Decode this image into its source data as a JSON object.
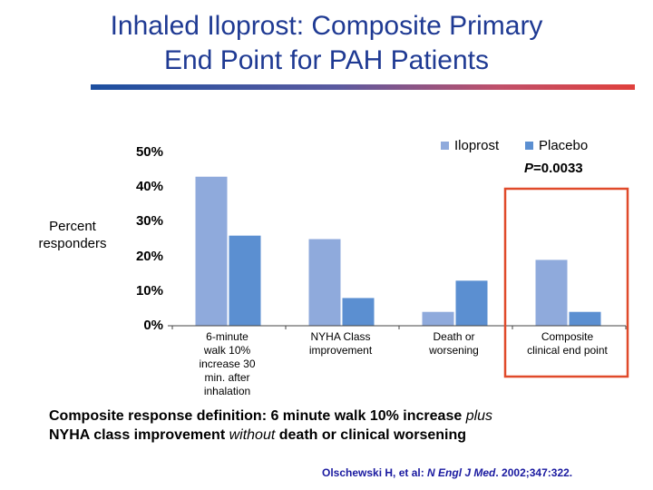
{
  "header": {
    "title_line1": "Inhaled Iloprost: Composite Primary",
    "title_line2": "End Point for PAH Patients"
  },
  "chart_data": {
    "type": "bar",
    "categories": [
      "6-minute walk 10% increase 30 min. after inhalation",
      "NYHA Class improvement",
      "Death or worsening",
      "Composite clinical end point"
    ],
    "category_lines": [
      [
        "6-minute",
        "walk 10%",
        "increase 30",
        "min. after",
        "inhalation"
      ],
      [
        "NYHA Class",
        "improvement"
      ],
      [
        "Death or",
        "worsening"
      ],
      [
        "Composite",
        "clinical end point"
      ]
    ],
    "series": [
      {
        "name": "Iloprost",
        "color": "#8faadc",
        "values": [
          43,
          25,
          4,
          19
        ]
      },
      {
        "name": "Placebo",
        "color": "#5b8fd1",
        "values": [
          26,
          8,
          13,
          4
        ]
      }
    ],
    "ylabel": "Percent responders",
    "yticks": [
      "0%",
      "10%",
      "20%",
      "30%",
      "40%",
      "50%"
    ],
    "ylim": [
      0,
      50
    ],
    "grid": false,
    "legend_position": "top-right",
    "annotation": {
      "prefix": "P",
      "text": "=0.0033"
    },
    "highlight_category": "Composite clinical end point",
    "highlight_color": "#e04a2a"
  },
  "footer": {
    "def_part1": "Composite response definition: 6 minute walk 10% increase ",
    "def_plus": "plus",
    "def_part2": "NYHA class improvement ",
    "def_without": "without",
    "def_part3": " death or clinical worsening",
    "cite_part1": "Olschewski H, et al: ",
    "cite_journal": "N Engl J Med",
    "cite_part2": ". 2002;347:322."
  }
}
